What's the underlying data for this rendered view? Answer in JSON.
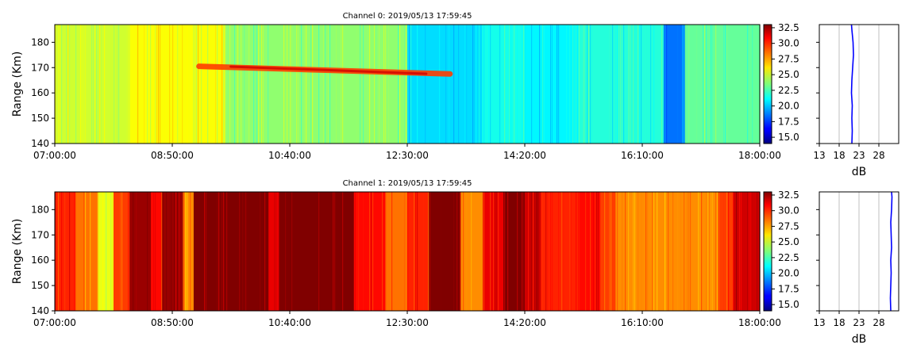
{
  "chart_data": [
    {
      "type": "heatmap",
      "title": "Channel 0: 2019/05/13 17:59:45",
      "ylabel": "Range (Km)",
      "xlim": [
        "07:00:00",
        "18:00:00"
      ],
      "ylim": [
        140,
        187
      ],
      "x_ticks": [
        "07:00:00",
        "08:50:00",
        "10:40:00",
        "12:30:00",
        "14:20:00",
        "16:10:00",
        "18:00:00"
      ],
      "y_ticks": [
        140,
        150,
        160,
        170,
        180
      ],
      "colorbar": {
        "colormap": "jet",
        "range": [
          14,
          33
        ],
        "ticks": [
          "15.0",
          "17.5",
          "20.0",
          "22.5",
          "25.0",
          "27.5",
          "30.0",
          "32.5"
        ]
      },
      "base_level_db": 22.5,
      "time_segments": [
        {
          "start": "07:00:00",
          "end": "08:10:00",
          "level_db": 25.0
        },
        {
          "start": "08:10:00",
          "end": "09:40:00",
          "level_db": 25.8
        },
        {
          "start": "09:40:00",
          "end": "12:30:00",
          "level_db": 23.8
        },
        {
          "start": "12:30:00",
          "end": "13:40:00",
          "level_db": 20.5
        },
        {
          "start": "13:40:00",
          "end": "14:20:00",
          "level_db": 21.5
        },
        {
          "start": "14:20:00",
          "end": "15:10:00",
          "level_db": 21.0
        },
        {
          "start": "15:10:00",
          "end": "16:30:00",
          "level_db": 21.8
        },
        {
          "start": "16:30:00",
          "end": "16:50:00",
          "level_db": 18.5
        },
        {
          "start": "16:50:00",
          "end": "18:00:00",
          "level_db": 23.0
        }
      ],
      "echo": {
        "start": "09:15:00",
        "end": "13:10:00",
        "range_start_km": 170.5,
        "range_end_km": 167.5,
        "level_db": 29.5
      },
      "profile": {
        "xlabel": "dB",
        "xlim": [
          13,
          33
        ],
        "x_ticks": [
          13,
          18,
          23,
          28
        ],
        "ylim": [
          140,
          187
        ],
        "color": "#0000ff",
        "range_km": [
          140,
          145,
          150,
          155,
          160,
          165,
          170,
          175,
          180,
          185,
          187
        ],
        "db": [
          21.2,
          21.3,
          21.2,
          21.3,
          21.1,
          21.2,
          21.4,
          21.6,
          21.5,
          21.2,
          21.1
        ]
      }
    },
    {
      "type": "heatmap",
      "title": "Channel 1: 2019/05/13 17:59:45",
      "ylabel": "Range (Km)",
      "xlim": [
        "07:00:00",
        "18:00:00"
      ],
      "ylim": [
        140,
        187
      ],
      "x_ticks": [
        "07:00:00",
        "08:50:00",
        "10:40:00",
        "12:30:00",
        "14:20:00",
        "16:10:00",
        "18:00:00"
      ],
      "y_ticks": [
        140,
        150,
        160,
        170,
        180
      ],
      "colorbar": {
        "colormap": "jet",
        "range": [
          14,
          33
        ],
        "ticks": [
          "15.0",
          "17.5",
          "20.0",
          "22.5",
          "25.0",
          "27.5",
          "30.0",
          "32.5"
        ]
      },
      "base_level_db": 31.5,
      "time_segments": [
        {
          "start": "07:00:00",
          "end": "07:20:00",
          "level_db": 30.0
        },
        {
          "start": "07:20:00",
          "end": "07:40:00",
          "level_db": 28.5
        },
        {
          "start": "07:40:00",
          "end": "07:55:00",
          "level_db": 25.5
        },
        {
          "start": "07:55:00",
          "end": "08:10:00",
          "level_db": 29.5
        },
        {
          "start": "08:10:00",
          "end": "08:30:00",
          "level_db": 32.5
        },
        {
          "start": "08:30:00",
          "end": "08:40:00",
          "level_db": 30.5
        },
        {
          "start": "08:40:00",
          "end": "09:00:00",
          "level_db": 32.5
        },
        {
          "start": "09:00:00",
          "end": "09:10:00",
          "level_db": 28.0
        },
        {
          "start": "09:10:00",
          "end": "10:20:00",
          "level_db": 33.0
        },
        {
          "start": "10:20:00",
          "end": "10:30:00",
          "level_db": 31.0
        },
        {
          "start": "10:30:00",
          "end": "11:40:00",
          "level_db": 33.0
        },
        {
          "start": "11:40:00",
          "end": "12:10:00",
          "level_db": 30.5
        },
        {
          "start": "12:10:00",
          "end": "12:30:00",
          "level_db": 28.5
        },
        {
          "start": "12:30:00",
          "end": "12:50:00",
          "level_db": 30.0
        },
        {
          "start": "12:50:00",
          "end": "13:20:00",
          "level_db": 33.0
        },
        {
          "start": "13:20:00",
          "end": "13:40:00",
          "level_db": 28.0
        },
        {
          "start": "13:40:00",
          "end": "14:00:00",
          "level_db": 31.0
        },
        {
          "start": "14:00:00",
          "end": "14:20:00",
          "level_db": 33.0
        },
        {
          "start": "14:20:00",
          "end": "14:35:00",
          "level_db": 31.5
        },
        {
          "start": "14:35:00",
          "end": "15:10:00",
          "level_db": 30.0
        },
        {
          "start": "15:10:00",
          "end": "15:30:00",
          "level_db": 30.5
        },
        {
          "start": "15:30:00",
          "end": "15:45:00",
          "level_db": 29.5
        },
        {
          "start": "15:45:00",
          "end": "17:20:00",
          "level_db": 28.0
        },
        {
          "start": "17:20:00",
          "end": "17:35:00",
          "level_db": 29.5
        },
        {
          "start": "17:35:00",
          "end": "18:00:00",
          "level_db": 31.5
        }
      ],
      "profile": {
        "xlabel": "dB",
        "xlim": [
          13,
          33
        ],
        "x_ticks": [
          13,
          18,
          23,
          28
        ],
        "ylim": [
          140,
          187
        ],
        "color": "#0000ff",
        "range_km": [
          140,
          145,
          150,
          155,
          160,
          165,
          170,
          175,
          180,
          185,
          187
        ],
        "db": [
          31.0,
          30.9,
          31.0,
          31.1,
          31.0,
          31.2,
          31.1,
          31.0,
          31.2,
          31.3,
          31.2
        ]
      }
    }
  ]
}
